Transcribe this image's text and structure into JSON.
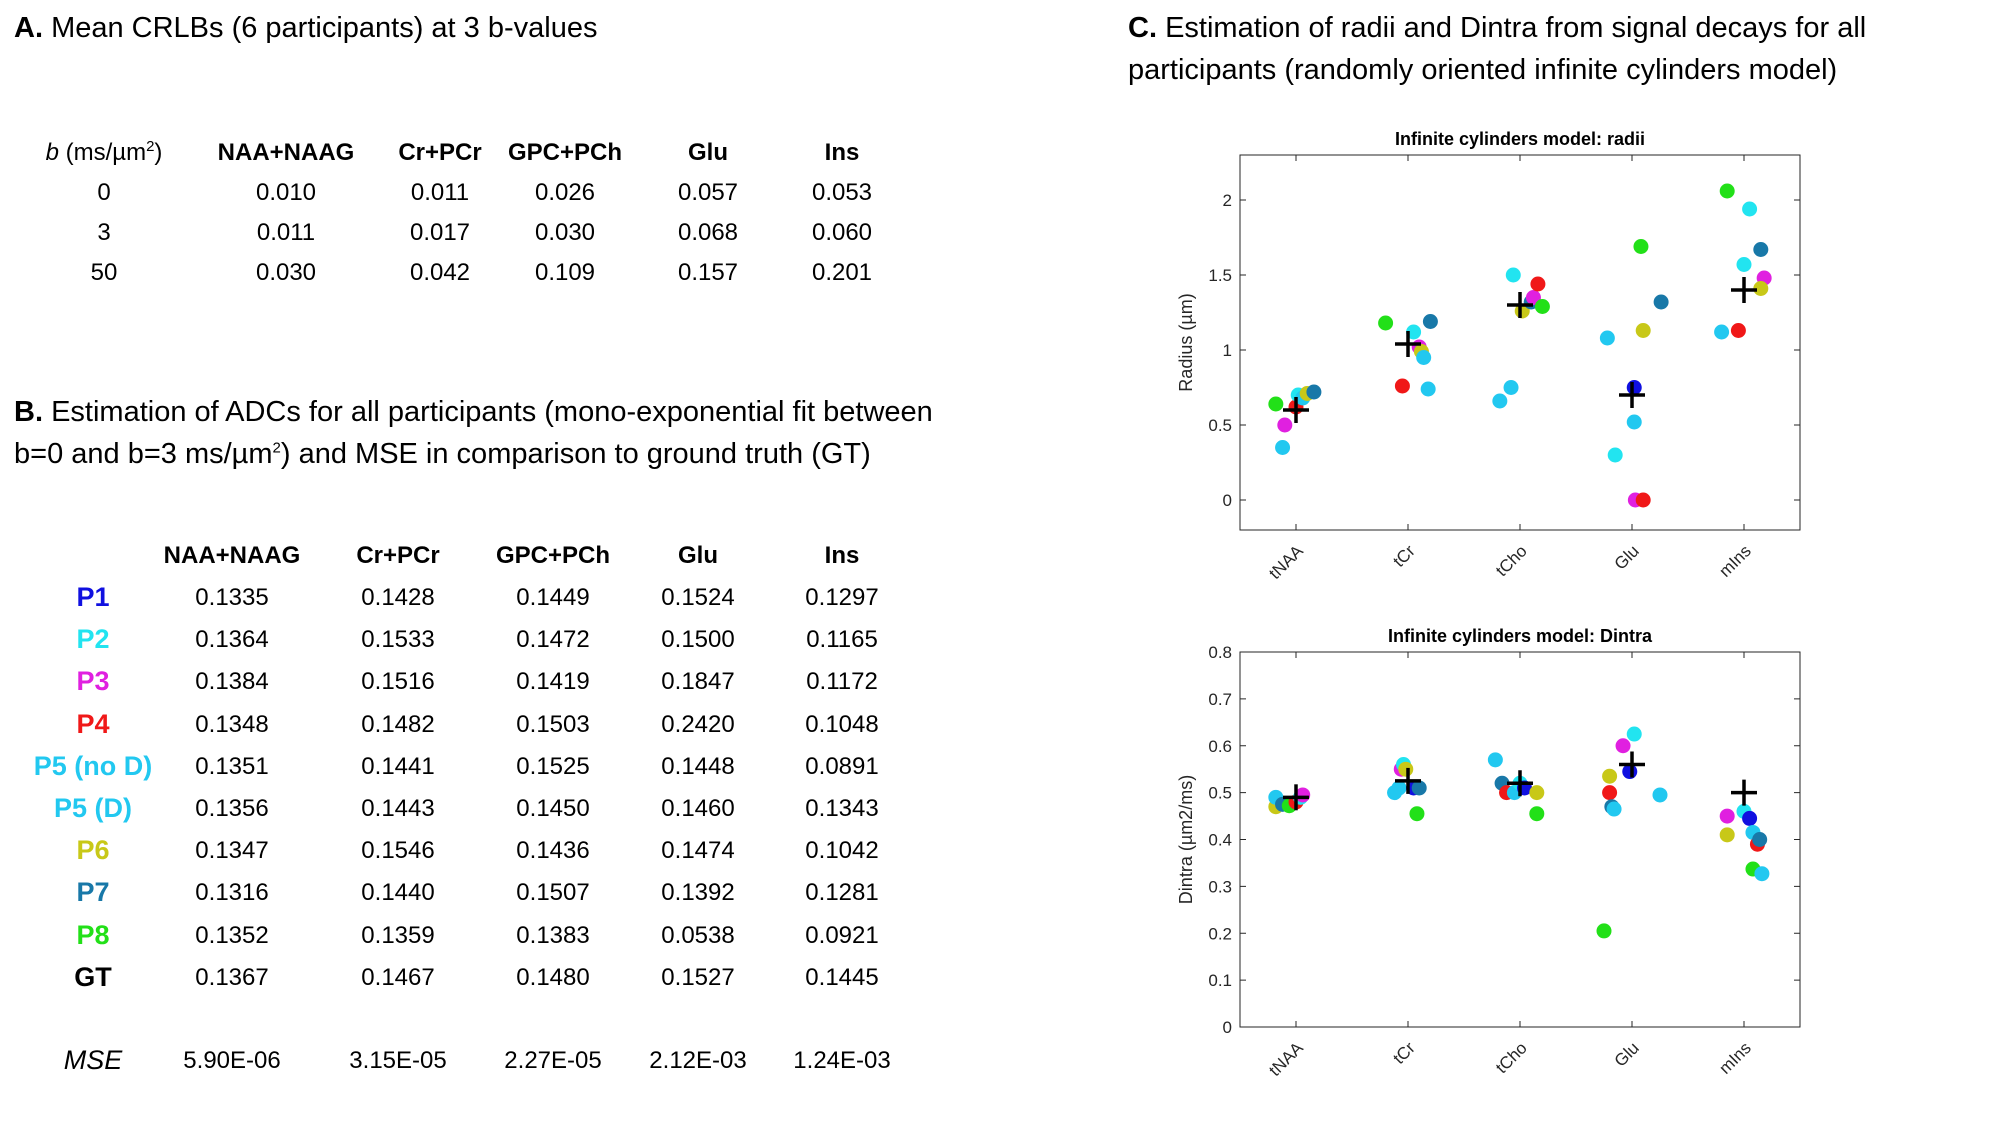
{
  "panelA": {
    "letter": "A.",
    "title": "Mean CRLBs (6 participants) at 3 b-values",
    "b_label_var": "b",
    "b_label_units": "(ms/µm",
    "b_label_exp": "2",
    "b_label_close": ")",
    "columns": [
      "NAA+NAAG",
      "Cr+PCr",
      "GPC+PCh",
      "Glu",
      "Ins"
    ],
    "rows": [
      {
        "b": "0",
        "values": [
          "0.010",
          "0.011",
          "0.026",
          "0.057",
          "0.053"
        ]
      },
      {
        "b": "3",
        "values": [
          "0.011",
          "0.017",
          "0.030",
          "0.068",
          "0.060"
        ]
      },
      {
        "b": "50",
        "values": [
          "0.030",
          "0.042",
          "0.109",
          "0.157",
          "0.201"
        ]
      }
    ]
  },
  "panelB": {
    "letter": "B.",
    "title_line1": "Estimation of ADCs for all participants (mono-exponential fit between",
    "title_line2_a": "b=0 and b=3 ms/µm",
    "title_line2_exp": "2",
    "title_line2_b": ") and MSE in comparison to ground truth (GT)",
    "columns": [
      "NAA+NAAG",
      "Cr+PCr",
      "GPC+PCh",
      "Glu",
      "Ins"
    ],
    "rows": [
      {
        "label": "P1",
        "color": "#1010e0",
        "values": [
          "0.1335",
          "0.1428",
          "0.1449",
          "0.1524",
          "0.1297"
        ]
      },
      {
        "label": "P2",
        "color": "#22e4f0",
        "values": [
          "0.1364",
          "0.1533",
          "0.1472",
          "0.1500",
          "0.1165"
        ]
      },
      {
        "label": "P3",
        "color": "#e020e0",
        "values": [
          "0.1384",
          "0.1516",
          "0.1419",
          "0.1847",
          "0.1172"
        ]
      },
      {
        "label": "P4",
        "color": "#f01818",
        "values": [
          "0.1348",
          "0.1482",
          "0.1503",
          "0.2420",
          "0.1048"
        ]
      },
      {
        "label": "P5 (no D)",
        "color": "#22c8f0",
        "values": [
          "0.1351",
          "0.1441",
          "0.1525",
          "0.1448",
          "0.0891"
        ]
      },
      {
        "label": "P5 (D)",
        "color": "#22c8f0",
        "values": [
          "0.1356",
          "0.1443",
          "0.1450",
          "0.1460",
          "0.1343"
        ]
      },
      {
        "label": "P6",
        "color": "#c8c818",
        "values": [
          "0.1347",
          "0.1546",
          "0.1436",
          "0.1474",
          "0.1042"
        ]
      },
      {
        "label": "P7",
        "color": "#1878a8",
        "values": [
          "0.1316",
          "0.1440",
          "0.1507",
          "0.1392",
          "0.1281"
        ]
      },
      {
        "label": "P8",
        "color": "#22e018",
        "values": [
          "0.1352",
          "0.1359",
          "0.1383",
          "0.0538",
          "0.0921"
        ]
      },
      {
        "label": "GT",
        "color": "#000000",
        "values": [
          "0.1367",
          "0.1467",
          "0.1480",
          "0.1527",
          "0.1445"
        ]
      }
    ],
    "mse_label": "MSE",
    "mse_values": [
      "5.90E-06",
      "3.15E-05",
      "2.27E-05",
      "2.12E-03",
      "1.24E-03"
    ]
  },
  "panelC": {
    "letter": "C.",
    "title_line1": "Estimation of radii and Dintra from signal decays for all",
    "title_line2": "participants (randomly oriented infinite cylinders model)"
  },
  "chart_data": [
    {
      "type": "scatter",
      "title": "Infinite cylinders model: radii",
      "xlabel": "",
      "ylabel": "Radius (µm)",
      "categories": [
        "tNAA",
        "tCr",
        "tCho",
        "Glu",
        "mIns"
      ],
      "ylim": [
        -0.2,
        2.3
      ],
      "yticks": [
        0,
        0.5,
        1,
        1.5,
        2
      ],
      "ytick_labels": [
        "0",
        "0.5",
        "1",
        "1.5",
        "2"
      ],
      "mean_marker": "+",
      "means": [
        0.6,
        1.04,
        1.3,
        0.7,
        1.4
      ],
      "points": [
        {
          "cat": 0,
          "dx": -0.18,
          "y": 0.64,
          "color": "#22e018"
        },
        {
          "cat": 0,
          "dx": -0.12,
          "y": 0.35,
          "color": "#22c8f0"
        },
        {
          "cat": 0,
          "dx": -0.1,
          "y": 0.5,
          "color": "#e020e0"
        },
        {
          "cat": 0,
          "dx": 0.0,
          "y": 0.62,
          "color": "#f01818"
        },
        {
          "cat": 0,
          "dx": 0.02,
          "y": 0.7,
          "color": "#22e4f0"
        },
        {
          "cat": 0,
          "dx": 0.06,
          "y": 0.68,
          "color": "#22c8f0"
        },
        {
          "cat": 0,
          "dx": 0.1,
          "y": 0.71,
          "color": "#c8c818"
        },
        {
          "cat": 0,
          "dx": 0.16,
          "y": 0.72,
          "color": "#1878a8"
        },
        {
          "cat": 1,
          "dx": -0.2,
          "y": 1.18,
          "color": "#22e018"
        },
        {
          "cat": 1,
          "dx": -0.05,
          "y": 0.76,
          "color": "#f01818"
        },
        {
          "cat": 1,
          "dx": 0.05,
          "y": 1.12,
          "color": "#22e4f0"
        },
        {
          "cat": 1,
          "dx": 0.1,
          "y": 1.02,
          "color": "#e020e0"
        },
        {
          "cat": 1,
          "dx": 0.12,
          "y": 0.99,
          "color": "#c8c818"
        },
        {
          "cat": 1,
          "dx": 0.14,
          "y": 0.95,
          "color": "#22c8f0"
        },
        {
          "cat": 1,
          "dx": 0.18,
          "y": 0.74,
          "color": "#22c8f0"
        },
        {
          "cat": 1,
          "dx": 0.2,
          "y": 1.19,
          "color": "#1878a8"
        },
        {
          "cat": 2,
          "dx": -0.18,
          "y": 0.66,
          "color": "#22c8f0"
        },
        {
          "cat": 2,
          "dx": -0.08,
          "y": 0.75,
          "color": "#22c8f0"
        },
        {
          "cat": 2,
          "dx": -0.06,
          "y": 1.5,
          "color": "#22e4f0"
        },
        {
          "cat": 2,
          "dx": 0.02,
          "y": 1.26,
          "color": "#c8c818"
        },
        {
          "cat": 2,
          "dx": 0.1,
          "y": 1.32,
          "color": "#1878a8"
        },
        {
          "cat": 2,
          "dx": 0.12,
          "y": 1.35,
          "color": "#e020e0"
        },
        {
          "cat": 2,
          "dx": 0.16,
          "y": 1.44,
          "color": "#f01818"
        },
        {
          "cat": 2,
          "dx": 0.2,
          "y": 1.29,
          "color": "#22e018"
        },
        {
          "cat": 3,
          "dx": -0.22,
          "y": 1.08,
          "color": "#22c8f0"
        },
        {
          "cat": 3,
          "dx": -0.15,
          "y": 0.3,
          "color": "#22e4f0"
        },
        {
          "cat": 3,
          "dx": 0.02,
          "y": 0.75,
          "color": "#1010e0"
        },
        {
          "cat": 3,
          "dx": 0.02,
          "y": 0.52,
          "color": "#22c8f0"
        },
        {
          "cat": 3,
          "dx": 0.03,
          "y": 0.0,
          "color": "#e020e0"
        },
        {
          "cat": 3,
          "dx": 0.08,
          "y": 1.69,
          "color": "#22e018"
        },
        {
          "cat": 3,
          "dx": 0.1,
          "y": 1.13,
          "color": "#c8c818"
        },
        {
          "cat": 3,
          "dx": 0.1,
          "y": 0.0,
          "color": "#f01818"
        },
        {
          "cat": 3,
          "dx": 0.26,
          "y": 1.32,
          "color": "#1878a8"
        },
        {
          "cat": 4,
          "dx": -0.2,
          "y": 1.12,
          "color": "#22c8f0"
        },
        {
          "cat": 4,
          "dx": -0.15,
          "y": 2.06,
          "color": "#22e018"
        },
        {
          "cat": 4,
          "dx": -0.05,
          "y": 1.13,
          "color": "#f01818"
        },
        {
          "cat": 4,
          "dx": 0.0,
          "y": 1.57,
          "color": "#22e4f0"
        },
        {
          "cat": 4,
          "dx": 0.05,
          "y": 1.94,
          "color": "#22e4f0"
        },
        {
          "cat": 4,
          "dx": 0.15,
          "y": 1.67,
          "color": "#1878a8"
        },
        {
          "cat": 4,
          "dx": 0.18,
          "y": 1.48,
          "color": "#e020e0"
        },
        {
          "cat": 4,
          "dx": 0.15,
          "y": 1.41,
          "color": "#c8c818"
        }
      ]
    },
    {
      "type": "scatter",
      "title": "Infinite cylinders model: Dintra",
      "xlabel": "",
      "ylabel": "Dintra (µm2/ms)",
      "categories": [
        "tNAA",
        "tCr",
        "tCho",
        "Glu",
        "mIns"
      ],
      "ylim": [
        0,
        0.8
      ],
      "yticks": [
        0,
        0.1,
        0.2,
        0.3,
        0.4,
        0.5,
        0.6,
        0.7,
        0.8
      ],
      "ytick_labels": [
        "0",
        "0.1",
        "0.2",
        "0.3",
        "0.4",
        "0.5",
        "0.6",
        "0.7",
        "0.8"
      ],
      "mean_marker": "+",
      "means": [
        0.49,
        0.525,
        0.52,
        0.56,
        0.5
      ],
      "points": [
        {
          "cat": 0,
          "dx": -0.18,
          "y": 0.47,
          "color": "#c8c818"
        },
        {
          "cat": 0,
          "dx": -0.18,
          "y": 0.49,
          "color": "#22c8f0"
        },
        {
          "cat": 0,
          "dx": -0.12,
          "y": 0.475,
          "color": "#1878a8"
        },
        {
          "cat": 0,
          "dx": -0.06,
          "y": 0.472,
          "color": "#22e018"
        },
        {
          "cat": 0,
          "dx": 0.0,
          "y": 0.48,
          "color": "#f01818"
        },
        {
          "cat": 0,
          "dx": 0.04,
          "y": 0.49,
          "color": "#22e4f0"
        },
        {
          "cat": 0,
          "dx": 0.06,
          "y": 0.495,
          "color": "#e020e0"
        },
        {
          "cat": 1,
          "dx": -0.12,
          "y": 0.5,
          "color": "#22c8f0"
        },
        {
          "cat": 1,
          "dx": -0.08,
          "y": 0.51,
          "color": "#22c8f0"
        },
        {
          "cat": 1,
          "dx": -0.06,
          "y": 0.55,
          "color": "#e020e0"
        },
        {
          "cat": 1,
          "dx": -0.04,
          "y": 0.56,
          "color": "#22e4f0"
        },
        {
          "cat": 1,
          "dx": -0.02,
          "y": 0.55,
          "color": "#c8c818"
        },
        {
          "cat": 1,
          "dx": 0.05,
          "y": 0.51,
          "color": "#1010e0"
        },
        {
          "cat": 1,
          "dx": 0.1,
          "y": 0.51,
          "color": "#1878a8"
        },
        {
          "cat": 1,
          "dx": 0.08,
          "y": 0.455,
          "color": "#22e018"
        },
        {
          "cat": 2,
          "dx": -0.22,
          "y": 0.57,
          "color": "#22c8f0"
        },
        {
          "cat": 2,
          "dx": -0.16,
          "y": 0.52,
          "color": "#1878a8"
        },
        {
          "cat": 2,
          "dx": -0.12,
          "y": 0.5,
          "color": "#f01818"
        },
        {
          "cat": 2,
          "dx": -0.05,
          "y": 0.5,
          "color": "#22c8f0"
        },
        {
          "cat": 2,
          "dx": 0.0,
          "y": 0.52,
          "color": "#22e4f0"
        },
        {
          "cat": 2,
          "dx": 0.04,
          "y": 0.51,
          "color": "#1010e0"
        },
        {
          "cat": 2,
          "dx": 0.15,
          "y": 0.5,
          "color": "#c8c818"
        },
        {
          "cat": 2,
          "dx": 0.15,
          "y": 0.455,
          "color": "#22e018"
        },
        {
          "cat": 3,
          "dx": -0.25,
          "y": 0.205,
          "color": "#22e018"
        },
        {
          "cat": 3,
          "dx": -0.2,
          "y": 0.535,
          "color": "#c8c818"
        },
        {
          "cat": 3,
          "dx": -0.2,
          "y": 0.5,
          "color": "#f01818"
        },
        {
          "cat": 3,
          "dx": -0.18,
          "y": 0.47,
          "color": "#1878a8"
        },
        {
          "cat": 3,
          "dx": -0.16,
          "y": 0.465,
          "color": "#22c8f0"
        },
        {
          "cat": 3,
          "dx": -0.08,
          "y": 0.6,
          "color": "#e020e0"
        },
        {
          "cat": 3,
          "dx": -0.02,
          "y": 0.545,
          "color": "#1010e0"
        },
        {
          "cat": 3,
          "dx": 0.02,
          "y": 0.625,
          "color": "#22e4f0"
        },
        {
          "cat": 3,
          "dx": 0.25,
          "y": 0.495,
          "color": "#22c8f0"
        },
        {
          "cat": 4,
          "dx": -0.15,
          "y": 0.45,
          "color": "#e020e0"
        },
        {
          "cat": 4,
          "dx": -0.15,
          "y": 0.41,
          "color": "#c8c818"
        },
        {
          "cat": 4,
          "dx": 0.0,
          "y": 0.46,
          "color": "#22e4f0"
        },
        {
          "cat": 4,
          "dx": 0.05,
          "y": 0.445,
          "color": "#1010e0"
        },
        {
          "cat": 4,
          "dx": 0.08,
          "y": 0.415,
          "color": "#22c8f0"
        },
        {
          "cat": 4,
          "dx": 0.12,
          "y": 0.39,
          "color": "#f01818"
        },
        {
          "cat": 4,
          "dx": 0.14,
          "y": 0.4,
          "color": "#1878a8"
        },
        {
          "cat": 4,
          "dx": 0.08,
          "y": 0.337,
          "color": "#22e018"
        },
        {
          "cat": 4,
          "dx": 0.16,
          "y": 0.327,
          "color": "#22c8f0"
        }
      ]
    }
  ]
}
